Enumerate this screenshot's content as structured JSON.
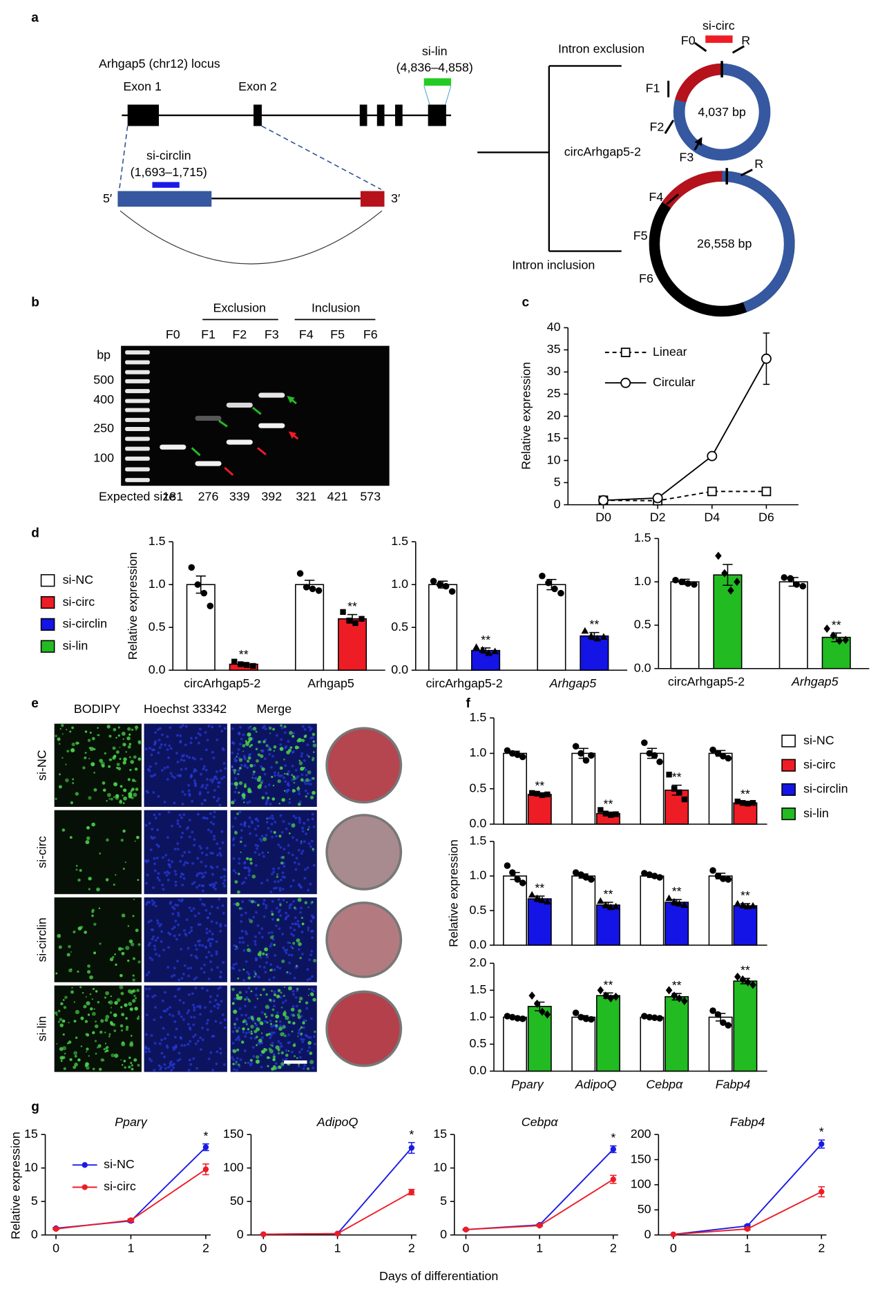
{
  "panels": [
    "a",
    "b",
    "c",
    "d",
    "e",
    "f",
    "g"
  ],
  "diagram": {
    "locus": "Arhgap5 (chr12) locus",
    "exon1": "Exon 1",
    "exon2": "Exon 2",
    "si_lin": "si-lin",
    "si_lin_range": "(4,836–4,858)",
    "si_circlin": "si-circlin",
    "si_circlin_range": "(1,693–1,715)",
    "five": "5′",
    "three": "3′",
    "exclusion": "Intron exclusion",
    "inclusion": "Intron inclusion",
    "circ_name": "circArhgap5-2",
    "circ1": {
      "size": "4,037 bp",
      "si": "si-circ",
      "primers": [
        "F0",
        "R",
        "F1",
        "F2",
        "F3"
      ]
    },
    "circ2": {
      "size": "26,558 bp",
      "primers": [
        "R",
        "F4",
        "F5",
        "F6"
      ]
    }
  },
  "gel": {
    "groups": [
      "Exclusion",
      "Inclusion"
    ],
    "lanes": [
      "F0",
      "F1",
      "F2",
      "F3",
      "F4",
      "F5",
      "F6"
    ],
    "unit": "bp",
    "ladder": [
      500,
      400,
      250,
      100
    ],
    "expected_label": "Expected size",
    "expected": [
      181,
      276,
      339,
      392,
      321,
      421,
      573
    ]
  },
  "images": {
    "stains": [
      "BODIPY",
      "Hoechst 33342",
      "Merge"
    ],
    "rows": [
      "si-NC",
      "si-circ",
      "si-circlin",
      "si-lin"
    ]
  },
  "legends": {
    "d": [
      {
        "name": "si-NC",
        "color": "#ffffff"
      },
      {
        "name": "si-circ",
        "color": "#ee1c25"
      },
      {
        "name": "si-circlin",
        "color": "#1414e6"
      },
      {
        "name": "si-lin",
        "color": "#22bb22"
      }
    ],
    "f": [
      {
        "name": "si-NC",
        "color": "#ffffff"
      },
      {
        "name": "si-circ",
        "color": "#ee1c25"
      },
      {
        "name": "si-circlin",
        "color": "#1414e6"
      },
      {
        "name": "si-lin",
        "color": "#22bb22"
      }
    ]
  },
  "chart_data": [
    {
      "type": "line",
      "categories": [
        "D0",
        "D2",
        "D4",
        "D6"
      ],
      "ylabel": "Relative expression",
      "ylim": [
        0,
        40
      ],
      "yticks": [
        0,
        5,
        10,
        15,
        20,
        25,
        30,
        35,
        40
      ],
      "legend": "upper left",
      "series": [
        {
          "name": "Linear",
          "color": "#000000",
          "dash": true,
          "marker": "square",
          "values": [
            1,
            0.9,
            3,
            3
          ],
          "errors": [
            0.1,
            0.1,
            0.3,
            0.2
          ]
        },
        {
          "name": "Circular",
          "color": "#000000",
          "dash": false,
          "marker": "circle",
          "values": [
            1,
            1.5,
            11,
            33
          ],
          "errors": [
            0.1,
            0.2,
            0.7,
            5.8
          ]
        }
      ]
    },
    {
      "type": "bar",
      "categories": [
        "circArhgap5-2",
        "Arhgap5"
      ],
      "italic": [
        false,
        false
      ],
      "ylabel": "Relative expression",
      "ylim": [
        0,
        1.5
      ],
      "yticks": [
        {
          "value": 0,
          "label": "0.0"
        },
        0.5,
        {
          "value": 1,
          "label": "1.0"
        },
        1.5
      ],
      "series": [
        {
          "color": "#ffffff",
          "marker": "circle",
          "values": [
            1,
            1
          ],
          "errors": [
            0.1,
            0.05
          ],
          "points": [
            [
              1.2,
              1.0,
              0.9,
              0.75
            ],
            [
              1.13,
              0.97,
              0.95,
              0.93
            ]
          ]
        },
        {
          "color": "#ee1c25",
          "marker": "square",
          "values": [
            0.07,
            0.6
          ],
          "errors": [
            0.02,
            0.05
          ],
          "points": [
            [
              0.1,
              0.07,
              0.06,
              0.05
            ],
            [
              0.68,
              0.58,
              0.55,
              0.6
            ]
          ],
          "labels": [
            "**",
            "**"
          ]
        }
      ]
    },
    {
      "type": "bar",
      "categories": [
        "circArhgap5-2",
        "Arhgap5"
      ],
      "italic": [
        false,
        true
      ],
      "ylim": [
        0,
        1.5
      ],
      "yticks": [
        {
          "value": 0,
          "label": "0.0"
        },
        0.5,
        {
          "value": 1,
          "label": "1.0"
        },
        1.5
      ],
      "series": [
        {
          "color": "#ffffff",
          "marker": "circle",
          "values": [
            1,
            1
          ],
          "errors": [
            0.04,
            0.06
          ],
          "points": [
            [
              1.04,
              1.0,
              0.98,
              0.92
            ],
            [
              1.1,
              1.02,
              0.95,
              0.9
            ]
          ]
        },
        {
          "color": "#1414e6",
          "marker": "triangle",
          "values": [
            0.23,
            0.4
          ],
          "errors": [
            0.03,
            0.04
          ],
          "points": [
            [
              0.27,
              0.24,
              0.2,
              0.22
            ],
            [
              0.46,
              0.4,
              0.37,
              0.39
            ]
          ],
          "labels": [
            "**",
            "**"
          ]
        }
      ]
    },
    {
      "type": "bar",
      "categories": [
        "circArhgap5-2",
        "Arhgap5"
      ],
      "italic": [
        false,
        true
      ],
      "ylim": [
        0,
        1.5
      ],
      "yticks": [
        {
          "value": 0,
          "label": "0.0"
        },
        0.5,
        {
          "value": 1,
          "label": "1.0"
        },
        1.5
      ],
      "series": [
        {
          "color": "#ffffff",
          "marker": "circle",
          "values": [
            1,
            1
          ],
          "errors": [
            0.03,
            0.05
          ],
          "points": [
            [
              1.02,
              1.0,
              0.98,
              0.97
            ],
            [
              1.05,
              1.04,
              0.97,
              0.95
            ]
          ]
        },
        {
          "color": "#22bb22",
          "marker": "diamond",
          "values": [
            1.08,
            0.36
          ],
          "errors": [
            0.12,
            0.05
          ],
          "points": [
            [
              1.3,
              1.1,
              0.9,
              1.0
            ],
            [
              0.46,
              0.38,
              0.32,
              0.33
            ]
          ],
          "labels": [
            null,
            "**"
          ]
        }
      ]
    },
    {
      "type": "bar",
      "ylim": [
        0,
        1.5
      ],
      "yticks": [
        {
          "value": 0,
          "label": "0.0"
        },
        0.5,
        {
          "value": 1,
          "label": "1.0"
        },
        1.5
      ],
      "series": [
        {
          "color": "#ffffff",
          "marker": "circle",
          "values": [
            1,
            1,
            1,
            1
          ],
          "errors": [
            0.03,
            0.07,
            0.07,
            0.04
          ],
          "points": [
            [
              1.04,
              1.0,
              0.98,
              0.95
            ],
            [
              1.1,
              1.0,
              0.9,
              0.97
            ],
            [
              1.15,
              1.0,
              0.97,
              0.88
            ],
            [
              1.05,
              1.0,
              0.96,
              0.93
            ]
          ]
        },
        {
          "color": "#ee1c25",
          "marker": "square",
          "values": [
            0.42,
            0.15,
            0.48,
            0.3
          ],
          "errors": [
            0.01,
            0.02,
            0.07,
            0.01
          ],
          "points": [
            [
              0.44,
              0.43,
              0.41,
              0.42
            ],
            [
              0.2,
              0.15,
              0.13,
              0.14
            ],
            [
              0.7,
              0.5,
              0.45,
              0.35
            ],
            [
              0.32,
              0.3,
              0.29,
              0.3
            ]
          ],
          "labels": [
            "**",
            "**",
            "**",
            "**"
          ]
        }
      ]
    },
    {
      "type": "bar",
      "ylabel": "Relative expression",
      "ylim": [
        0,
        1.5
      ],
      "yticks": [
        {
          "value": 0,
          "label": "0.0"
        },
        0.5,
        {
          "value": 1,
          "label": "1.0"
        },
        1.5
      ],
      "series": [
        {
          "color": "#ffffff",
          "marker": "circle",
          "values": [
            1,
            1,
            1,
            1
          ],
          "errors": [
            0.05,
            0.03,
            0.02,
            0.04
          ],
          "points": [
            [
              1.15,
              1.05,
              0.95,
              0.9
            ],
            [
              1.05,
              1.02,
              0.98,
              0.95
            ],
            [
              1.04,
              1.02,
              1.0,
              0.98
            ],
            [
              1.08,
              1.0,
              0.96,
              0.95
            ]
          ]
        },
        {
          "color": "#1414e6",
          "marker": "triangle",
          "values": [
            0.67,
            0.58,
            0.62,
            0.57
          ],
          "errors": [
            0.04,
            0.04,
            0.04,
            0.03
          ],
          "points": [
            [
              0.73,
              0.68,
              0.65,
              0.63
            ],
            [
              0.64,
              0.58,
              0.55,
              0.56
            ],
            [
              0.68,
              0.63,
              0.6,
              0.58
            ],
            [
              0.6,
              0.58,
              0.56,
              0.57
            ]
          ],
          "labels": [
            "**",
            "**",
            "**",
            "**"
          ]
        }
      ]
    },
    {
      "type": "bar",
      "categories": [
        "Pparγ",
        "AdipoQ",
        "Cebpα",
        "Fabp4"
      ],
      "italic": [
        true,
        true,
        true,
        true
      ],
      "ylim": [
        0,
        2
      ],
      "yticks": [
        {
          "value": 0,
          "label": "0.0"
        },
        0.5,
        {
          "value": 1,
          "label": "1.0"
        },
        1.5,
        {
          "value": 2,
          "label": "2.0"
        }
      ],
      "series": [
        {
          "color": "#ffffff",
          "marker": "circle",
          "values": [
            1,
            1,
            1,
            1
          ],
          "errors": [
            0.02,
            0.03,
            0.02,
            0.07
          ],
          "points": [
            [
              1.02,
              1.0,
              0.98,
              0.97
            ],
            [
              1.08,
              1.0,
              0.97,
              0.96
            ],
            [
              1.02,
              1.0,
              0.99,
              0.98
            ],
            [
              1.12,
              1.05,
              0.9,
              0.85
            ]
          ]
        },
        {
          "color": "#22bb22",
          "marker": "diamond",
          "values": [
            1.2,
            1.4,
            1.38,
            1.67
          ],
          "errors": [
            0.08,
            0.05,
            0.06,
            0.05
          ],
          "points": [
            [
              1.4,
              1.25,
              1.1,
              1.05
            ],
            [
              1.5,
              1.4,
              1.35,
              1.38
            ],
            [
              1.5,
              1.4,
              1.35,
              1.3
            ],
            [
              1.75,
              1.7,
              1.65,
              1.6
            ]
          ],
          "labels": [
            null,
            "**",
            "**",
            "**"
          ]
        }
      ]
    },
    {
      "type": "line",
      "title": "Pparγ",
      "x": [
        0,
        1,
        2
      ],
      "xlim": [
        0,
        2
      ],
      "xticks": [
        0,
        1,
        2
      ],
      "ylim": [
        0,
        15
      ],
      "yticks": [
        0,
        5,
        10,
        15
      ],
      "ylabel": "Relative expression",
      "legend": "upper left",
      "series": [
        {
          "name": "si-NC",
          "color": "#1a1ae6",
          "marker": "dot",
          "values": [
            1,
            2.1,
            13.1
          ],
          "errors": [
            0.1,
            0.2,
            0.5
          ],
          "labels": [
            null,
            null,
            "*"
          ]
        },
        {
          "name": "si-circ",
          "color": "#ee1c25",
          "marker": "dot",
          "values": [
            0.9,
            2.2,
            9.8
          ],
          "errors": [
            0.1,
            0.2,
            0.8
          ]
        }
      ]
    },
    {
      "type": "line",
      "title": "AdipoQ",
      "x": [
        0,
        1,
        2
      ],
      "xlim": [
        0,
        2
      ],
      "xticks": [
        0,
        1,
        2
      ],
      "ylim": [
        0,
        150
      ],
      "yticks": [
        0,
        50,
        100,
        150
      ],
      "xlabel": "Days of differentiation",
      "series": [
        {
          "color": "#1a1ae6",
          "marker": "dot",
          "values": [
            1,
            2,
            130
          ],
          "errors": [
            0.2,
            0.3,
            8
          ],
          "labels": [
            null,
            null,
            "*"
          ]
        },
        {
          "color": "#ee1c25",
          "marker": "dot",
          "values": [
            1,
            2,
            64
          ],
          "errors": [
            0.2,
            0.3,
            4
          ]
        }
      ]
    },
    {
      "type": "line",
      "title": "Cebpα",
      "x": [
        0,
        1,
        2
      ],
      "xlim": [
        0,
        2
      ],
      "xticks": [
        0,
        1,
        2
      ],
      "ylim": [
        0,
        15
      ],
      "yticks": [
        0,
        5,
        10,
        15
      ],
      "series": [
        {
          "color": "#1a1ae6",
          "marker": "dot",
          "values": [
            0.8,
            1.5,
            12.8
          ],
          "errors": [
            0.1,
            0.1,
            0.5
          ],
          "labels": [
            null,
            null,
            "*"
          ]
        },
        {
          "color": "#ee1c25",
          "marker": "dot",
          "values": [
            0.8,
            1.4,
            8.3
          ],
          "errors": [
            0.1,
            0.1,
            0.6
          ]
        }
      ]
    },
    {
      "type": "line",
      "title": "Fabp4",
      "x": [
        0,
        1,
        2
      ],
      "xlim": [
        0,
        2
      ],
      "xticks": [
        0,
        1,
        2
      ],
      "ylim": [
        0,
        200
      ],
      "yticks": [
        0,
        50,
        100,
        150,
        200
      ],
      "series": [
        {
          "color": "#1a1ae6",
          "marker": "dot",
          "values": [
            1,
            18,
            181
          ],
          "errors": [
            0.2,
            2,
            8
          ],
          "labels": [
            null,
            null,
            "*"
          ]
        },
        {
          "color": "#ee1c25",
          "marker": "dot",
          "values": [
            1,
            12,
            86
          ],
          "errors": [
            0.2,
            2,
            10
          ]
        }
      ]
    }
  ]
}
